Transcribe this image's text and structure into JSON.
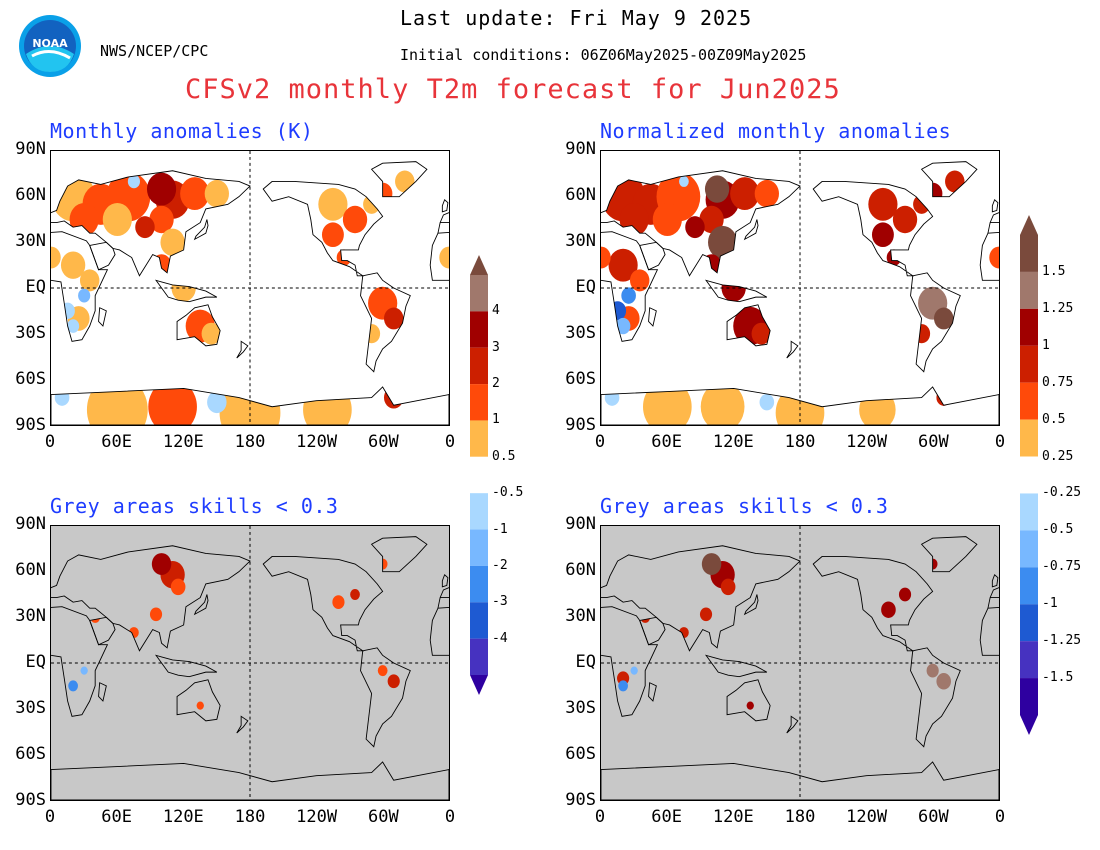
{
  "header": {
    "agency": "NWS/NCEP/CPC",
    "last_update": "Last update: Fri May 9 2025",
    "initial_conditions": "Initial conditions: 06Z06May2025-00Z09May2025",
    "title": "CFSv2 monthly T2m forecast for Jun2025",
    "title_color": "#e8343a",
    "panel_title_color": "#1e3cff"
  },
  "logo": {
    "icon": "noaa-logo-icon",
    "text": "NOAA"
  },
  "axes": {
    "lat_labels": [
      "90N",
      "60N",
      "30N",
      "EQ",
      "30S",
      "60S",
      "90S"
    ],
    "lon_labels": [
      "0",
      "60E",
      "120E",
      "180",
      "120W",
      "60W",
      "0"
    ]
  },
  "panels": [
    {
      "id": "anomalies",
      "title": "Monthly anomalies (K)",
      "mask": "none"
    },
    {
      "id": "normalized",
      "title": "Normalized monthly anomalies",
      "mask": "none"
    },
    {
      "id": "anomalies-skill",
      "title": "Grey areas skills < 0.3",
      "mask": "grey"
    },
    {
      "id": "normalized-skill",
      "title": "Grey areas skills < 0.3",
      "mask": "grey"
    }
  ],
  "colorbars": {
    "anomaly": {
      "warm_ticks": [
        "4",
        "3",
        "2",
        "1",
        "0.5"
      ],
      "cool_ticks": [
        "-0.5",
        "-1",
        "-2",
        "-3",
        "-4"
      ]
    },
    "normalized": {
      "warm_ticks": [
        "1.5",
        "1.25",
        "1",
        "0.75",
        "0.5",
        "0.25"
      ],
      "cool_ticks": [
        "-0.25",
        "-0.5",
        "-0.75",
        "-1",
        "-1.25",
        "-1.5"
      ]
    },
    "warm_colors": [
      "#ffb84a",
      "#ff4a0a",
      "#cc1f00",
      "#a00000",
      "#a0786c",
      "#7a4a3c"
    ],
    "cool_colors": [
      "#a9d8ff",
      "#78b8ff",
      "#3c8cf0",
      "#1e5ad2",
      "#4632c0",
      "#2e00a0"
    ]
  },
  "mask_color": "#c8c8c8"
}
